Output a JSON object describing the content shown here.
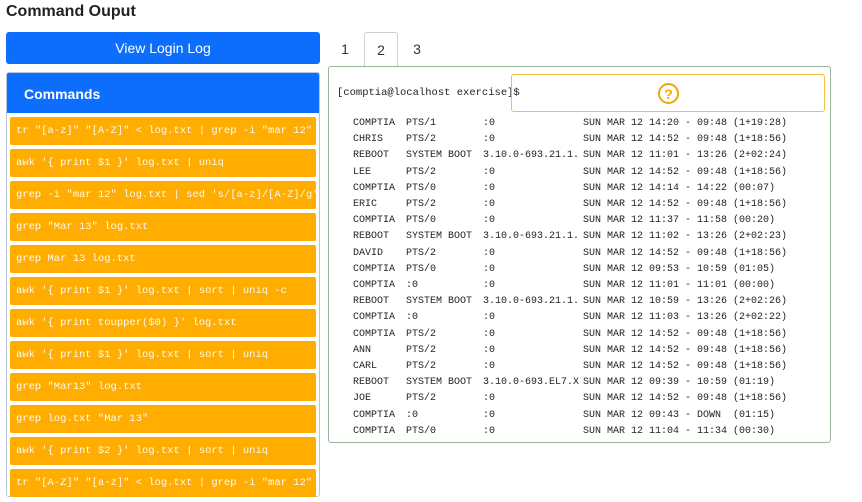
{
  "header": {
    "title": "Command Ouput"
  },
  "button": {
    "label": "View Login Log"
  },
  "commands": {
    "title": "Commands",
    "items": [
      "tr \"[a-z]\" \"[A-Z]\" < log.txt | grep -i \"mar 12\"",
      "awk '{ print $1 }' log.txt | uniq",
      "grep -i \"mar 12\" log.txt | sed 's/[a-z]/[A-Z]/g'",
      "grep \"Mar 13\" log.txt",
      "grep Mar 13 log.txt",
      "awk '{ print $1 }' log.txt | sort | uniq -c",
      "awk '{ print toupper($0) }' log.txt",
      "awk '{ print $1 }' log.txt | sort | uniq",
      "grep \"Mar13\" log.txt",
      "grep log.txt \"Mar 13\"",
      "awk '{ print $2 }' log.txt | sort | uniq",
      "tr \"[A-Z]\" \"[a-z]\" < log.txt | grep -i \"mar 12\""
    ]
  },
  "tabs": [
    "1",
    "2",
    "3"
  ],
  "terminal": {
    "prompt": "[comptia@localhost exercise]$",
    "help_icon": "?",
    "rows": [
      [
        "COMPTIA",
        "PTS/1",
        ":0",
        "SUN MAR 12 14:20 - 09:48 (1+19:28)"
      ],
      [
        "CHRIS",
        "PTS/2",
        ":0",
        "SUN MAR 12 14:52 - 09:48 (1+18:56)"
      ],
      [
        "REBOOT",
        "SYSTEM BOOT",
        "3.10.0-693.21.1.",
        "SUN MAR 12 11:01 - 13:26 (2+02:24)"
      ],
      [
        "LEE",
        "PTS/2",
        ":0",
        "SUN MAR 12 14:52 - 09:48 (1+18:56)"
      ],
      [
        "COMPTIA",
        "PTS/0",
        ":0",
        "SUN MAR 12 14:14 - 14:22 (00:07)"
      ],
      [
        "ERIC",
        "PTS/2",
        ":0",
        "SUN MAR 12 14:52 - 09:48 (1+18:56)"
      ],
      [
        "COMPTIA",
        "PTS/0",
        ":0",
        "SUN MAR 12 11:37 - 11:58 (00:20)"
      ],
      [
        "REBOOT",
        "SYSTEM BOOT",
        "3.10.0-693.21.1.",
        "SUN MAR 12 11:02 - 13:26 (2+02:23)"
      ],
      [
        "DAVID",
        "PTS/2",
        ":0",
        "SUN MAR 12 14:52 - 09:48 (1+18:56)"
      ],
      [
        "COMPTIA",
        "PTS/0",
        ":0",
        "SUN MAR 12 09:53 - 10:59 (01:05)"
      ],
      [
        "COMPTIA",
        ":0",
        ":0",
        "SUN MAR 12 11:01 - 11:01 (00:00)"
      ],
      [
        "REBOOT",
        "SYSTEM BOOT",
        "3.10.0-693.21.1.",
        "SUN MAR 12 10:59 - 13:26 (2+02:26)"
      ],
      [
        "COMPTIA",
        ":0",
        ":0",
        "SUN MAR 12 11:03 - 13:26 (2+02:22)"
      ],
      [
        "COMPTIA",
        "PTS/2",
        ":0",
        "SUN MAR 12 14:52 - 09:48 (1+18:56)"
      ],
      [
        "ANN",
        "PTS/2",
        ":0",
        "SUN MAR 12 14:52 - 09:48 (1+18:56)"
      ],
      [
        "CARL",
        "PTS/2",
        ":0",
        "SUN MAR 12 14:52 - 09:48 (1+18:56)"
      ],
      [
        "REBOOT",
        "SYSTEM BOOT",
        "3.10.0-693.EL7.X",
        "SUN MAR 12 09:39 - 10:59 (01:19)"
      ],
      [
        "JOE",
        "PTS/2",
        ":0",
        "SUN MAR 12 14:52 - 09:48 (1+18:56)"
      ],
      [
        "COMPTIA",
        ":0",
        ":0",
        "SUN MAR 12 09:43 - DOWN  (01:15)"
      ],
      [
        "COMPTIA",
        "PTS/0",
        ":0",
        "SUN MAR 12 11:04 - 11:34 (00:30)"
      ]
    ]
  }
}
